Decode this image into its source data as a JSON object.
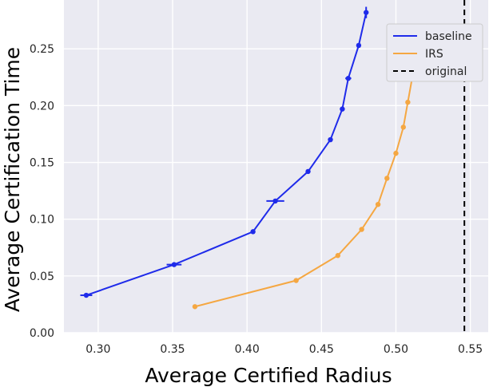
{
  "chart_data": {
    "type": "line",
    "xlabel": "Average Certified Radius",
    "ylabel": "Average Certification Time",
    "xlim": [
      0.277,
      0.562
    ],
    "ylim": [
      0.0,
      0.293
    ],
    "x_ticks": [
      "0.30",
      "0.35",
      "0.40",
      "0.45",
      "0.50",
      "0.55"
    ],
    "x_tick_values": [
      0.3,
      0.35,
      0.4,
      0.45,
      0.5,
      0.55
    ],
    "y_ticks": [
      "0.00",
      "0.05",
      "0.10",
      "0.15",
      "0.20",
      "0.25"
    ],
    "y_tick_values": [
      0.0,
      0.05,
      0.1,
      0.15,
      0.2,
      0.25
    ],
    "grid": true,
    "legend_position": "top-right",
    "series": [
      {
        "name": "baseline",
        "color": "#1f2bea",
        "x": [
          0.292,
          0.351,
          0.404,
          0.419,
          0.441,
          0.456,
          0.464,
          0.468,
          0.475,
          0.48
        ],
        "y": [
          0.033,
          0.06,
          0.089,
          0.116,
          0.142,
          0.17,
          0.197,
          0.224,
          0.253,
          0.282
        ],
        "xerr": [
          0.004,
          0.005,
          0.0,
          0.006,
          0.0,
          0.0,
          0.0,
          0.002,
          0.0,
          0.0
        ],
        "yerr": [
          0.0,
          0.0,
          0.0,
          0.0,
          0.0,
          0.0,
          0.0,
          0.0,
          0.0,
          0.005
        ]
      },
      {
        "name": "IRS",
        "color": "#f5a742",
        "x": [
          0.365,
          0.433,
          0.461,
          0.477,
          0.488,
          0.494,
          0.5,
          0.505,
          0.508,
          0.511
        ],
        "y": [
          0.023,
          0.046,
          0.068,
          0.091,
          0.113,
          0.136,
          0.158,
          0.181,
          0.203,
          0.225
        ]
      }
    ],
    "reference_lines": [
      {
        "name": "original",
        "x": 0.546,
        "color": "#000000",
        "style": "dashed"
      }
    ]
  }
}
